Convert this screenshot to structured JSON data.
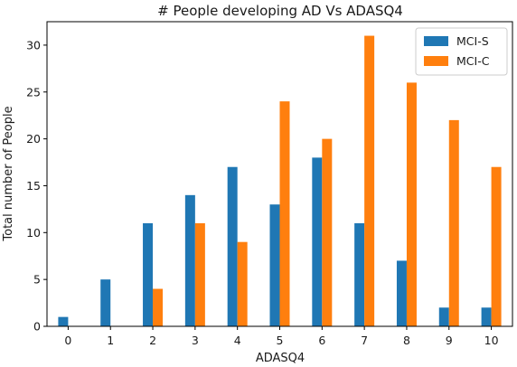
{
  "chart_data": {
    "type": "bar",
    "title": "# People developing AD Vs ADASQ4",
    "xlabel": "ADASQ4",
    "ylabel": "Total number of People",
    "categories": [
      "0",
      "1",
      "2",
      "3",
      "4",
      "5",
      "6",
      "7",
      "8",
      "9",
      "10"
    ],
    "series": [
      {
        "name": "MCI-S",
        "color": "#1f77b4",
        "values": [
          1,
          5,
          11,
          14,
          17,
          13,
          18,
          11,
          7,
          2,
          2
        ]
      },
      {
        "name": "MCI-C",
        "color": "#ff7f0e",
        "values": [
          0,
          0,
          4,
          11,
          9,
          24,
          20,
          31,
          26,
          22,
          17
        ]
      }
    ],
    "ylim": [
      0,
      32.5
    ],
    "yticks": [
      0,
      5,
      10,
      15,
      20,
      25,
      30
    ],
    "grid": false,
    "legend_position": "top-right"
  }
}
